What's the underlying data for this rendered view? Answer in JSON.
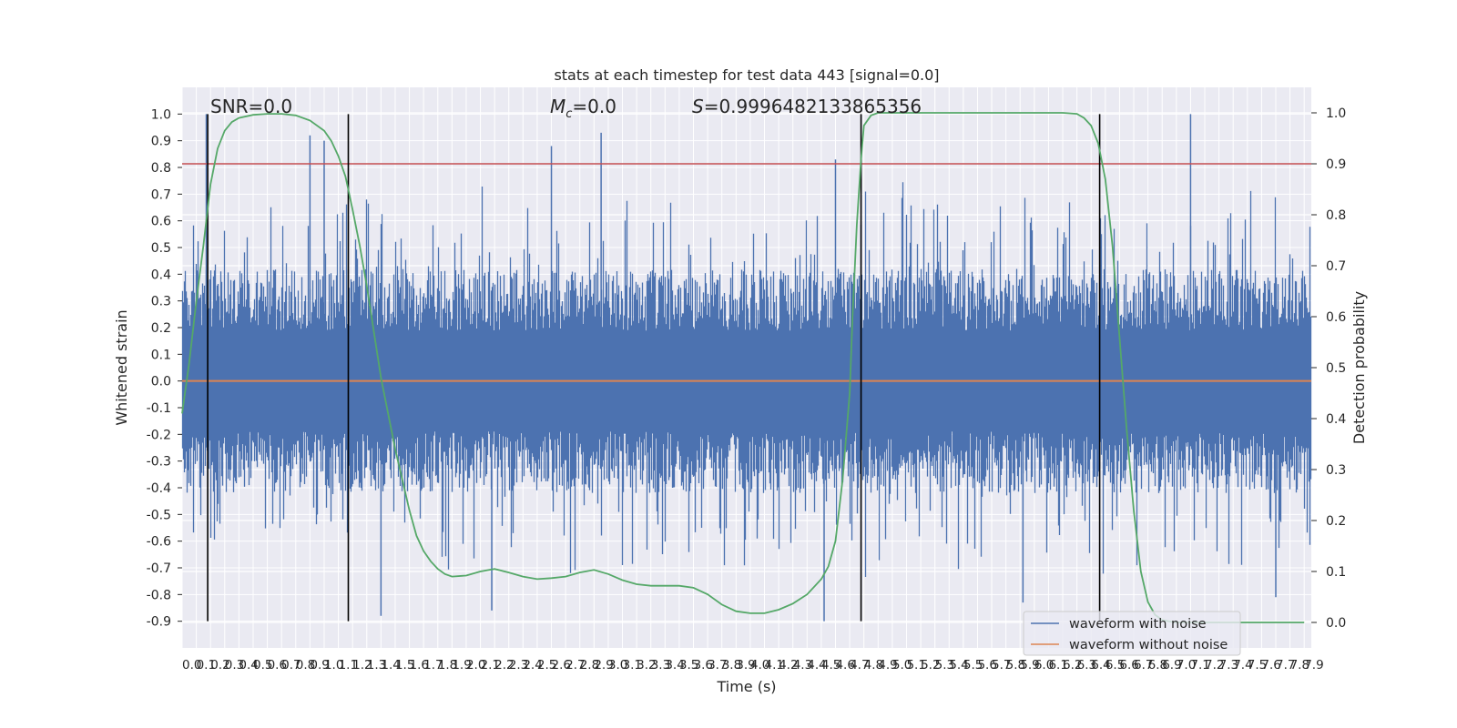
{
  "chart_data": {
    "type": "line",
    "title": "stats at each timestep for test data 443 [signal=0.0]",
    "xlabel": "Time (s)",
    "ylabel_left": "Whitened strain",
    "ylabel_right": "Detection probability",
    "annotations": {
      "snr": "SNR=0.0",
      "mc_symbol": "M",
      "mc_sub": "c",
      "mc_value": "=0.0",
      "s_symbol": "S",
      "s_value": "=0.9996482133865356"
    },
    "xlim": [
      0.0,
      7.95
    ],
    "ylim_left": [
      -1.0,
      1.1
    ],
    "ylim_right": [
      -0.05,
      1.05
    ],
    "x_tick_labels": [
      "0.0",
      "0.1",
      "0.2",
      "0.3",
      "0.4",
      "0.5",
      "0.6",
      "0.7",
      "0.8",
      "0.9",
      "1.0",
      "1.1",
      "1.2",
      "1.3",
      "1.4",
      "1.5",
      "1.6",
      "1.7",
      "1.8",
      "1.9",
      "2.0",
      "2.1",
      "2.2",
      "2.3",
      "2.4",
      "2.5",
      "2.6",
      "2.7",
      "2.8",
      "2.9",
      "3.0",
      "3.1",
      "3.2",
      "3.3",
      "3.4",
      "3.5",
      "3.6",
      "3.7",
      "3.8",
      "3.9",
      "4.0",
      "4.1",
      "4.2",
      "4.3",
      "4.4",
      "4.5",
      "4.6",
      "4.7",
      "4.8",
      "4.9",
      "5.0",
      "5.1",
      "5.2",
      "5.3",
      "5.4",
      "5.5",
      "5.6",
      "5.7",
      "5.8",
      "5.9",
      "6.0",
      "6.1",
      "6.2",
      "6.3",
      "6.4",
      "6.5",
      "6.6",
      "6.7",
      "6.8",
      "6.9",
      "7.0",
      "7.1",
      "7.2",
      "7.3",
      "7.4",
      "7.5",
      "7.6",
      "7.7",
      "7.8",
      "7.9"
    ],
    "y_left_tick_labels": [
      "1.0",
      "0.9",
      "0.8",
      "0.7",
      "0.6",
      "0.5",
      "0.4",
      "0.3",
      "0.2",
      "0.1",
      "0.0",
      "-0.1",
      "-0.2",
      "-0.3",
      "-0.4",
      "-0.5",
      "-0.6",
      "-0.7",
      "-0.8",
      "-0.9"
    ],
    "y_right_tick_labels": [
      "1.0",
      "0.9",
      "0.8",
      "0.7",
      "0.6",
      "0.5",
      "0.4",
      "0.3",
      "0.2",
      "0.1",
      "0.0"
    ],
    "threshold_probability": 0.9,
    "vertical_lines_x": [
      0.18,
      1.17,
      4.78,
      6.46
    ],
    "vertical_lines_yrange": [
      -0.9,
      1.0
    ],
    "noise_envelope": {
      "typical_amplitude": 0.42,
      "peak_max": 1.0,
      "peak_min": -0.9
    },
    "series": [
      {
        "name": "waveform with noise",
        "color": "#4c72b0"
      },
      {
        "name": "waveform without noise",
        "color": "#dd8452",
        "values_constant": 0.0
      },
      {
        "color": "#55a868",
        "x": [
          0.0,
          0.05,
          0.1,
          0.15,
          0.2,
          0.25,
          0.3,
          0.35,
          0.4,
          0.5,
          0.6,
          0.7,
          0.8,
          0.9,
          1.0,
          1.05,
          1.1,
          1.15,
          1.2,
          1.25,
          1.3,
          1.35,
          1.4,
          1.45,
          1.5,
          1.55,
          1.6,
          1.65,
          1.7,
          1.75,
          1.8,
          1.85,
          1.9,
          2.0,
          2.1,
          2.2,
          2.3,
          2.4,
          2.5,
          2.6,
          2.7,
          2.8,
          2.9,
          3.0,
          3.1,
          3.2,
          3.3,
          3.4,
          3.5,
          3.6,
          3.7,
          3.8,
          3.9,
          4.0,
          4.1,
          4.2,
          4.3,
          4.4,
          4.5,
          4.55,
          4.6,
          4.65,
          4.7,
          4.72,
          4.75,
          4.78,
          4.8,
          4.85,
          4.9,
          5.0,
          5.5,
          6.0,
          6.2,
          6.3,
          6.35,
          6.4,
          6.45,
          6.5,
          6.55,
          6.6,
          6.65,
          6.7,
          6.75,
          6.8,
          6.85,
          6.9,
          6.95,
          7.0,
          7.2,
          7.5,
          7.9
        ],
        "values": [
          0.41,
          0.51,
          0.63,
          0.74,
          0.86,
          0.93,
          0.965,
          0.982,
          0.99,
          0.996,
          0.998,
          0.998,
          0.995,
          0.985,
          0.965,
          0.945,
          0.915,
          0.875,
          0.81,
          0.74,
          0.66,
          0.57,
          0.48,
          0.41,
          0.34,
          0.28,
          0.22,
          0.17,
          0.14,
          0.12,
          0.105,
          0.095,
          0.09,
          0.092,
          0.1,
          0.105,
          0.098,
          0.09,
          0.085,
          0.087,
          0.09,
          0.098,
          0.103,
          0.095,
          0.083,
          0.075,
          0.072,
          0.072,
          0.072,
          0.068,
          0.055,
          0.035,
          0.022,
          0.018,
          0.018,
          0.025,
          0.037,
          0.055,
          0.085,
          0.11,
          0.16,
          0.28,
          0.45,
          0.6,
          0.78,
          0.91,
          0.975,
          0.995,
          1.0,
          1.0,
          1.0,
          1.0,
          1.0,
          0.998,
          0.99,
          0.975,
          0.94,
          0.87,
          0.74,
          0.56,
          0.38,
          0.22,
          0.1,
          0.04,
          0.015,
          0.005,
          0.002,
          0.0,
          0.0,
          0.0,
          0.0
        ]
      }
    ],
    "legend": {
      "placement": "lower-right"
    },
    "grid": true
  }
}
